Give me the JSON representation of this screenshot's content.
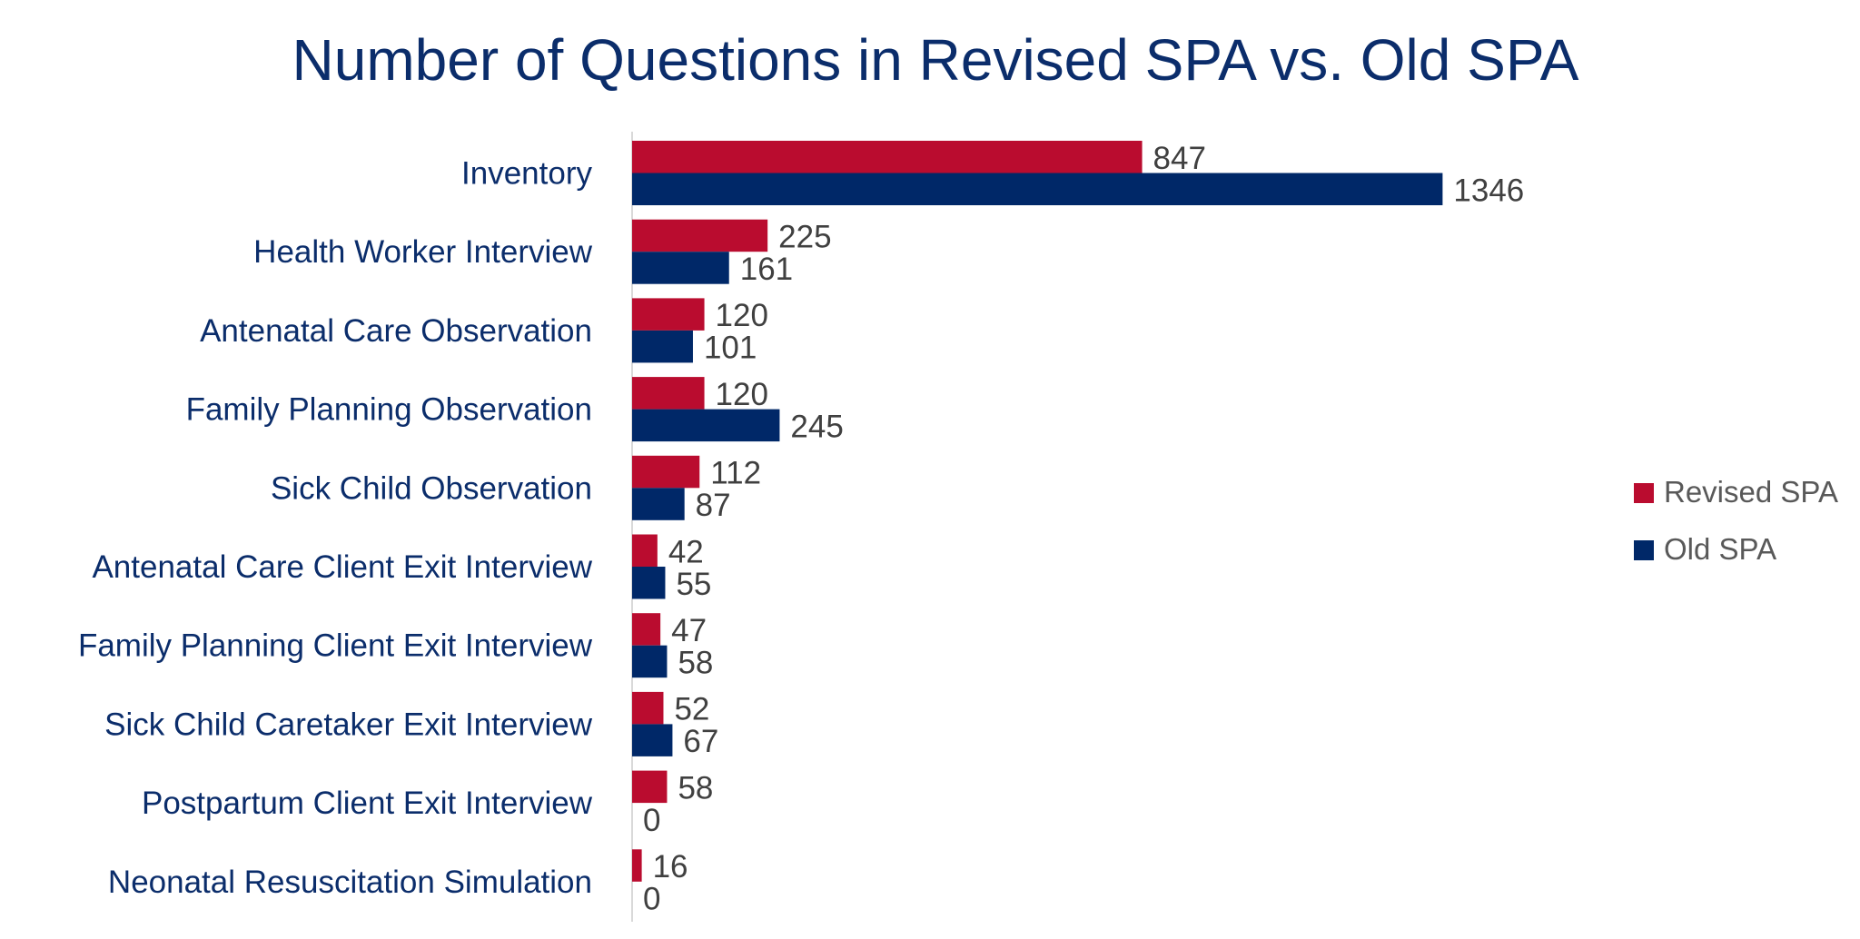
{
  "chart_data": {
    "type": "bar",
    "orientation": "horizontal",
    "title": "Number of Questions in Revised SPA vs. Old SPA",
    "categories": [
      "Inventory",
      "Health Worker Interview",
      "Antenatal Care Observation",
      "Family Planning Observation",
      "Sick Child Observation",
      "Antenatal Care Client Exit Interview",
      "Family Planning Client Exit Interview",
      "Sick Child Caretaker Exit Interview",
      "Postpartum Client Exit Interview",
      "Neonatal Resuscitation Simulation"
    ],
    "series": [
      {
        "name": "Revised SPA",
        "color": "#ba0c2f",
        "values": [
          847,
          225,
          120,
          120,
          112,
          42,
          47,
          52,
          58,
          16
        ]
      },
      {
        "name": "Old SPA",
        "color": "#002868",
        "values": [
          1346,
          161,
          101,
          245,
          87,
          55,
          58,
          67,
          0,
          0
        ]
      }
    ],
    "xlim": [
      0,
      2000
    ],
    "grid": false,
    "data_labels": true,
    "legend_position": "right"
  }
}
